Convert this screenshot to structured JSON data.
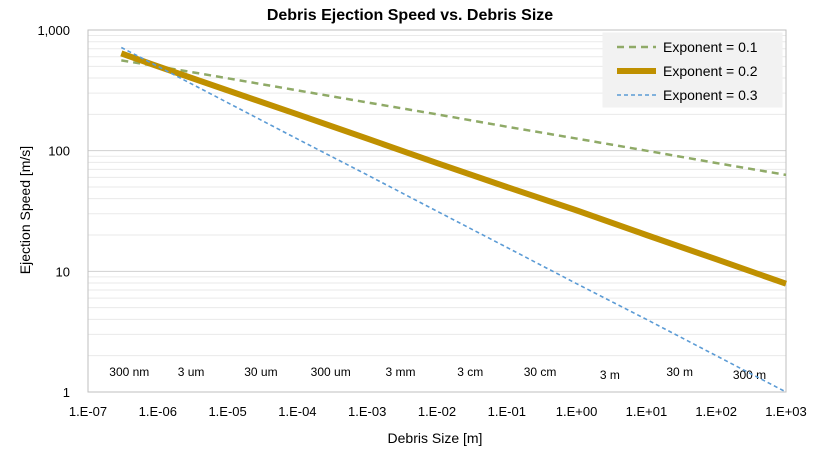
{
  "chart_data": {
    "type": "line",
    "title": "Debris Ejection Speed vs. Debris Size",
    "xlabel": "Debris Size [m]",
    "ylabel": "Ejection Speed [m/s]",
    "x_scale": "log",
    "y_scale": "log",
    "xlim": [
      1e-07,
      1000
    ],
    "ylim": [
      1,
      1000
    ],
    "x_ticks": [
      {
        "value": 1e-07,
        "label": "1.E-07"
      },
      {
        "value": 1e-06,
        "label": "1.E-06"
      },
      {
        "value": 1e-05,
        "label": "1.E-05"
      },
      {
        "value": 0.0001,
        "label": "1.E-04"
      },
      {
        "value": 0.001,
        "label": "1.E-03"
      },
      {
        "value": 0.01,
        "label": "1.E-02"
      },
      {
        "value": 0.1,
        "label": "1.E-01"
      },
      {
        "value": 1,
        "label": "1.E+00"
      },
      {
        "value": 10,
        "label": "1.E+01"
      },
      {
        "value": 100,
        "label": "1.E+02"
      },
      {
        "value": 1000,
        "label": "1.E+03"
      }
    ],
    "y_ticks": [
      {
        "value": 1,
        "label": "1"
      },
      {
        "value": 10,
        "label": "10"
      },
      {
        "value": 100,
        "label": "100"
      },
      {
        "value": 1000,
        "label": "1,000"
      }
    ],
    "grid": {
      "major": true,
      "minor": true
    },
    "legend_position": "top-right",
    "series": [
      {
        "name": "Exponent = 0.1",
        "color": "#8faa67",
        "style": "dashed",
        "x": [
          3e-07,
          1e-06,
          1e-05,
          0.0001,
          0.001,
          0.01,
          0.1,
          1,
          10,
          100,
          1000
        ],
        "y": [
          560,
          500,
          398,
          316,
          251,
          200,
          158,
          126,
          100,
          79,
          63
        ]
      },
      {
        "name": "Exponent = 0.2",
        "color": "#bf9000",
        "style": "solid-thick",
        "x": [
          3e-07,
          1e-06,
          1e-05,
          0.0001,
          0.001,
          0.01,
          0.1,
          1,
          10,
          100,
          1000
        ],
        "y": [
          640,
          500,
          316,
          200,
          126,
          79,
          50,
          32,
          20,
          12.6,
          7.9
        ]
      },
      {
        "name": "Exponent = 0.3",
        "color": "#5b9bd5",
        "style": "dashed-thin",
        "x": [
          3e-07,
          1e-06,
          1e-05,
          0.0001,
          0.001,
          0.01,
          0.1,
          1,
          10,
          100,
          1000
        ],
        "y": [
          716,
          500,
          250,
          125,
          63,
          31.5,
          15.8,
          7.9,
          4.0,
          2.0,
          1.0
        ]
      }
    ],
    "size_annotations": [
      {
        "x": 3e-07,
        "label": "300 nm"
      },
      {
        "x": 3e-06,
        "label": "3 um"
      },
      {
        "x": 3e-05,
        "label": "30 um"
      },
      {
        "x": 0.0003,
        "label": "300 um"
      },
      {
        "x": 0.003,
        "label": "3 mm"
      },
      {
        "x": 0.03,
        "label": "3 cm"
      },
      {
        "x": 0.3,
        "label": "30 cm"
      },
      {
        "x": 3,
        "label": "3 m"
      },
      {
        "x": 30,
        "label": "30 m"
      },
      {
        "x": 300,
        "label": "300 m"
      }
    ]
  }
}
